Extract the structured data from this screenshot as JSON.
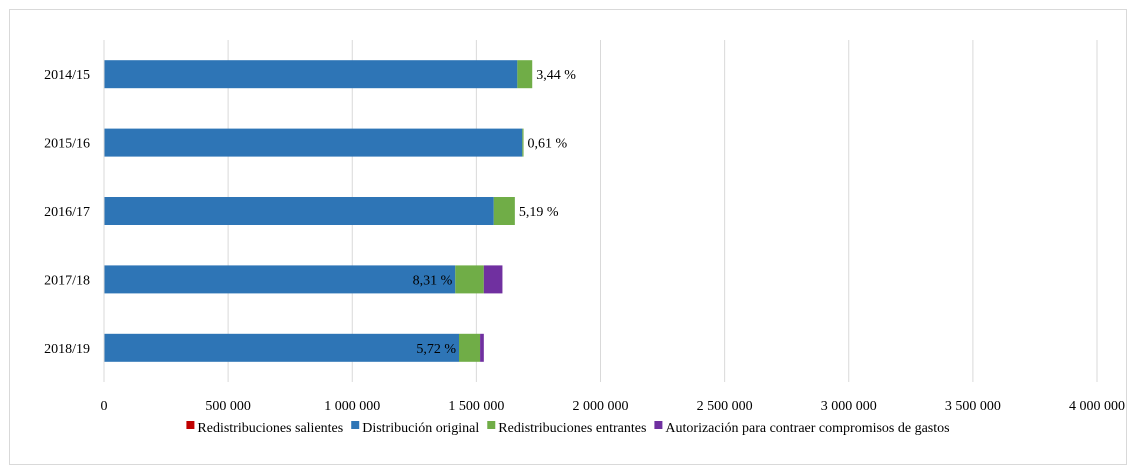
{
  "chart_data": {
    "type": "bar",
    "orientation": "horizontal",
    "stacked": true,
    "title": "",
    "xlabel": "",
    "ylabel": "",
    "xlim": [
      0,
      4000000
    ],
    "x_ticks": [
      0,
      500000,
      1000000,
      1500000,
      2000000,
      2500000,
      3000000,
      3500000,
      4000000
    ],
    "x_tick_labels": [
      "0",
      "500 000",
      "1 000 000",
      "1 500 000",
      "2 000 000",
      "2 500 000",
      "3 000 000",
      "3 500 000",
      "4 000 000"
    ],
    "grid": "vertical",
    "legend_position": "bottom",
    "categories": [
      "2014/15",
      "2015/16",
      "2016/17",
      "2017/18",
      "2018/19"
    ],
    "series": [
      {
        "name": "Redistribuciones salientes",
        "color": "#c00000",
        "values": [
          0,
          0,
          0,
          0,
          0
        ]
      },
      {
        "name": "Distribución original",
        "color": "#2e75b6",
        "values": [
          1665000,
          1685000,
          1570000,
          1415000,
          1430000
        ]
      },
      {
        "name": "Redistribuciones entrantes",
        "color": "#70ad47",
        "values": [
          60000,
          5000,
          85000,
          115000,
          85000
        ]
      },
      {
        "name": "Autorización para contraer compromisos de gastos",
        "color": "#7030a0",
        "values": [
          0,
          0,
          0,
          75000,
          15000
        ]
      }
    ],
    "bar_labels": [
      "3,44 %",
      "0,61 %",
      "5,19 %",
      "8,31 %",
      "5,72 %"
    ],
    "bar_label_position": [
      "outside",
      "outside",
      "outside",
      "inside",
      "inside"
    ]
  }
}
